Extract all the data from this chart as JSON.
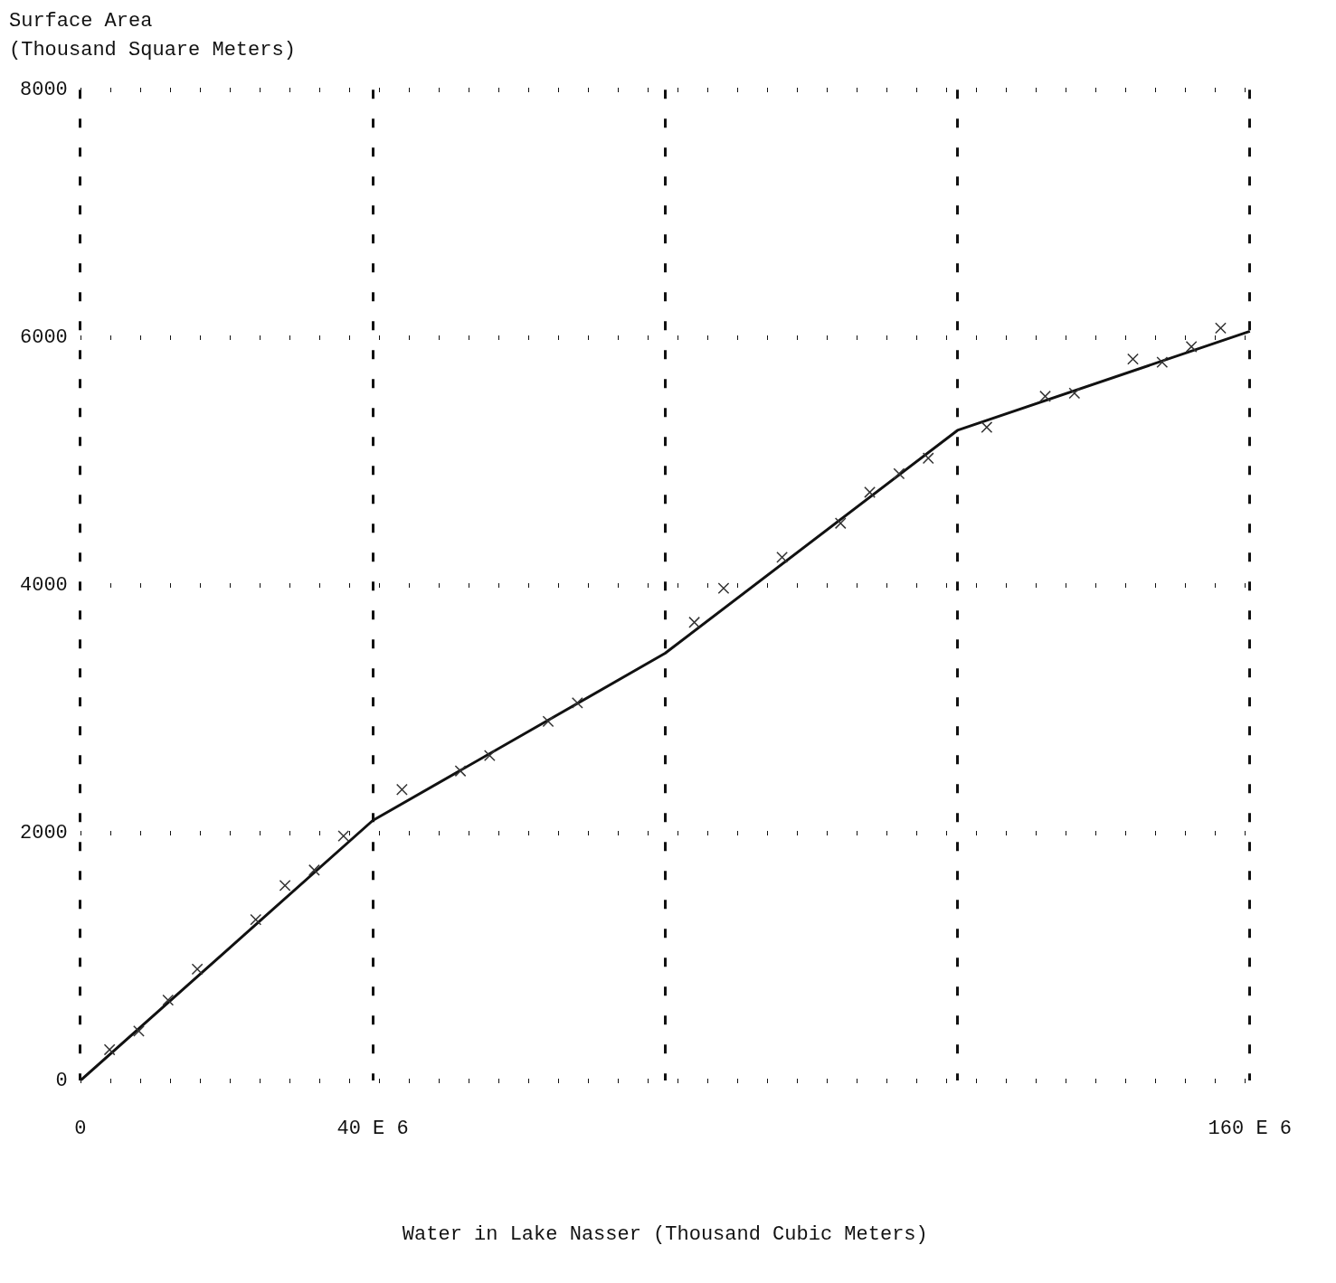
{
  "chart_data": {
    "type": "line",
    "ylabel": "Surface Area\n(Thousand Square Meters)",
    "xlabel": "Water in Lake Nasser (Thousand Cubic Meters)",
    "categories": [
      "0",
      null,
      null,
      null,
      null,
      null,
      null,
      null,
      null,
      null,
      "40 E 6",
      null,
      null,
      null,
      null,
      null,
      null,
      null,
      null,
      null,
      null,
      null,
      null,
      null,
      null,
      null,
      null,
      null,
      null,
      null,
      null,
      null,
      null,
      null,
      null,
      null,
      null,
      null,
      null,
      null,
      "160 E 6"
    ],
    "ylim": [
      0,
      8000
    ],
    "yticks": [
      0,
      2000,
      4000,
      6000,
      8000
    ],
    "grid": true,
    "series": [
      {
        "type": "line",
        "color": "#111111",
        "marker": "none",
        "values": [
          0,
          null,
          null,
          null,
          null,
          null,
          null,
          null,
          null,
          null,
          2100,
          null,
          null,
          null,
          null,
          null,
          null,
          null,
          null,
          null,
          3450,
          null,
          null,
          null,
          null,
          null,
          null,
          null,
          null,
          null,
          5250,
          null,
          null,
          null,
          null,
          null,
          null,
          null,
          null,
          null,
          6050
        ]
      },
      {
        "type": "scatter",
        "color": "#333333",
        "marker": "cross",
        "values": [
          null,
          250,
          400,
          650,
          900,
          null,
          1300,
          1575,
          1700,
          1975,
          null,
          2350,
          null,
          2500,
          2625,
          null,
          2900,
          3050,
          null,
          null,
          null,
          3700,
          3975,
          null,
          4225,
          null,
          4500,
          4750,
          4900,
          5025,
          null,
          5275,
          null,
          5525,
          5550,
          null,
          5825,
          5800,
          5925,
          6075,
          null
        ]
      }
    ]
  }
}
